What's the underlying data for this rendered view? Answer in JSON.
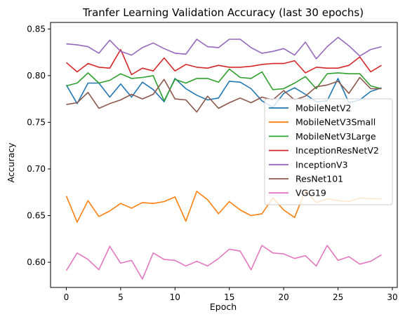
{
  "chart_data": {
    "type": "line",
    "title": "Tranfer Learning Validation Accuracy (last 30 epochs)",
    "xlabel": "Epoch",
    "ylabel": "Accuracy",
    "xlim": [
      -1.45,
      30.45
    ],
    "ylim": [
      0.573,
      0.857
    ],
    "xticks": [
      0,
      5,
      10,
      15,
      20,
      25,
      30
    ],
    "yticks": [
      0.6,
      0.65,
      0.7,
      0.75,
      0.8,
      0.85
    ],
    "grid": false,
    "legend_position": "center-right",
    "x": [
      0,
      1,
      2,
      3,
      4,
      5,
      6,
      7,
      8,
      9,
      10,
      11,
      12,
      13,
      14,
      15,
      16,
      17,
      18,
      19,
      20,
      21,
      22,
      23,
      24,
      25,
      26,
      27,
      28,
      29
    ],
    "series": [
      {
        "name": "MobileNetV2",
        "color": "#1f77b4",
        "values": [
          0.79,
          0.77,
          0.792,
          0.792,
          0.777,
          0.791,
          0.777,
          0.793,
          0.785,
          0.772,
          0.797,
          0.786,
          0.779,
          0.774,
          0.776,
          0.794,
          0.793,
          0.786,
          0.773,
          0.766,
          0.781,
          0.787,
          0.78,
          0.772,
          0.773,
          0.797,
          0.771,
          0.774,
          0.783,
          0.787
        ]
      },
      {
        "name": "MobileNetV3Small",
        "color": "#ff7f0e",
        "values": [
          0.671,
          0.643,
          0.666,
          0.649,
          0.655,
          0.663,
          0.658,
          0.664,
          0.663,
          0.665,
          0.67,
          0.644,
          0.676,
          0.667,
          0.652,
          0.665,
          0.656,
          0.65,
          0.652,
          0.669,
          0.656,
          0.648,
          0.677,
          0.664,
          0.668,
          0.666,
          0.665,
          0.669,
          0.668,
          0.668
        ]
      },
      {
        "name": "MobileNetV3Large",
        "color": "#2ca02c",
        "values": [
          0.789,
          0.792,
          0.803,
          0.792,
          0.795,
          0.802,
          0.797,
          0.798,
          0.8,
          0.773,
          0.796,
          0.792,
          0.797,
          0.797,
          0.793,
          0.807,
          0.798,
          0.797,
          0.804,
          0.785,
          0.786,
          0.792,
          0.799,
          0.786,
          0.802,
          0.803,
          0.802,
          0.802,
          0.789,
          0.786
        ]
      },
      {
        "name": "InceptionResNetV2",
        "color": "#d62728",
        "values": [
          0.814,
          0.804,
          0.813,
          0.809,
          0.808,
          0.828,
          0.801,
          0.808,
          0.805,
          0.819,
          0.805,
          0.812,
          0.809,
          0.808,
          0.811,
          0.809,
          0.809,
          0.81,
          0.812,
          0.813,
          0.813,
          0.816,
          0.803,
          0.809,
          0.808,
          0.808,
          0.811,
          0.82,
          0.804,
          0.811
        ]
      },
      {
        "name": "InceptionV3",
        "color": "#9467bd",
        "values": [
          0.834,
          0.833,
          0.831,
          0.824,
          0.838,
          0.826,
          0.822,
          0.83,
          0.835,
          0.829,
          0.824,
          0.823,
          0.839,
          0.831,
          0.83,
          0.839,
          0.839,
          0.83,
          0.824,
          0.826,
          0.829,
          0.822,
          0.836,
          0.818,
          0.831,
          0.841,
          0.832,
          0.821,
          0.828,
          0.831
        ]
      },
      {
        "name": "ResNet101",
        "color": "#8c564b",
        "values": [
          0.769,
          0.771,
          0.782,
          0.765,
          0.77,
          0.774,
          0.78,
          0.775,
          0.78,
          0.796,
          0.775,
          0.774,
          0.761,
          0.778,
          0.765,
          0.771,
          0.776,
          0.771,
          0.777,
          0.774,
          0.784,
          0.774,
          0.778,
          0.788,
          0.79,
          0.794,
          0.781,
          0.798,
          0.786,
          0.786
        ]
      },
      {
        "name": "VGG19",
        "color": "#e377c2",
        "values": [
          0.591,
          0.61,
          0.603,
          0.592,
          0.617,
          0.599,
          0.602,
          0.582,
          0.61,
          0.603,
          0.602,
          0.596,
          0.601,
          0.596,
          0.604,
          0.614,
          0.612,
          0.592,
          0.618,
          0.61,
          0.609,
          0.604,
          0.607,
          0.596,
          0.618,
          0.602,
          0.606,
          0.598,
          0.601,
          0.608
        ]
      }
    ]
  }
}
